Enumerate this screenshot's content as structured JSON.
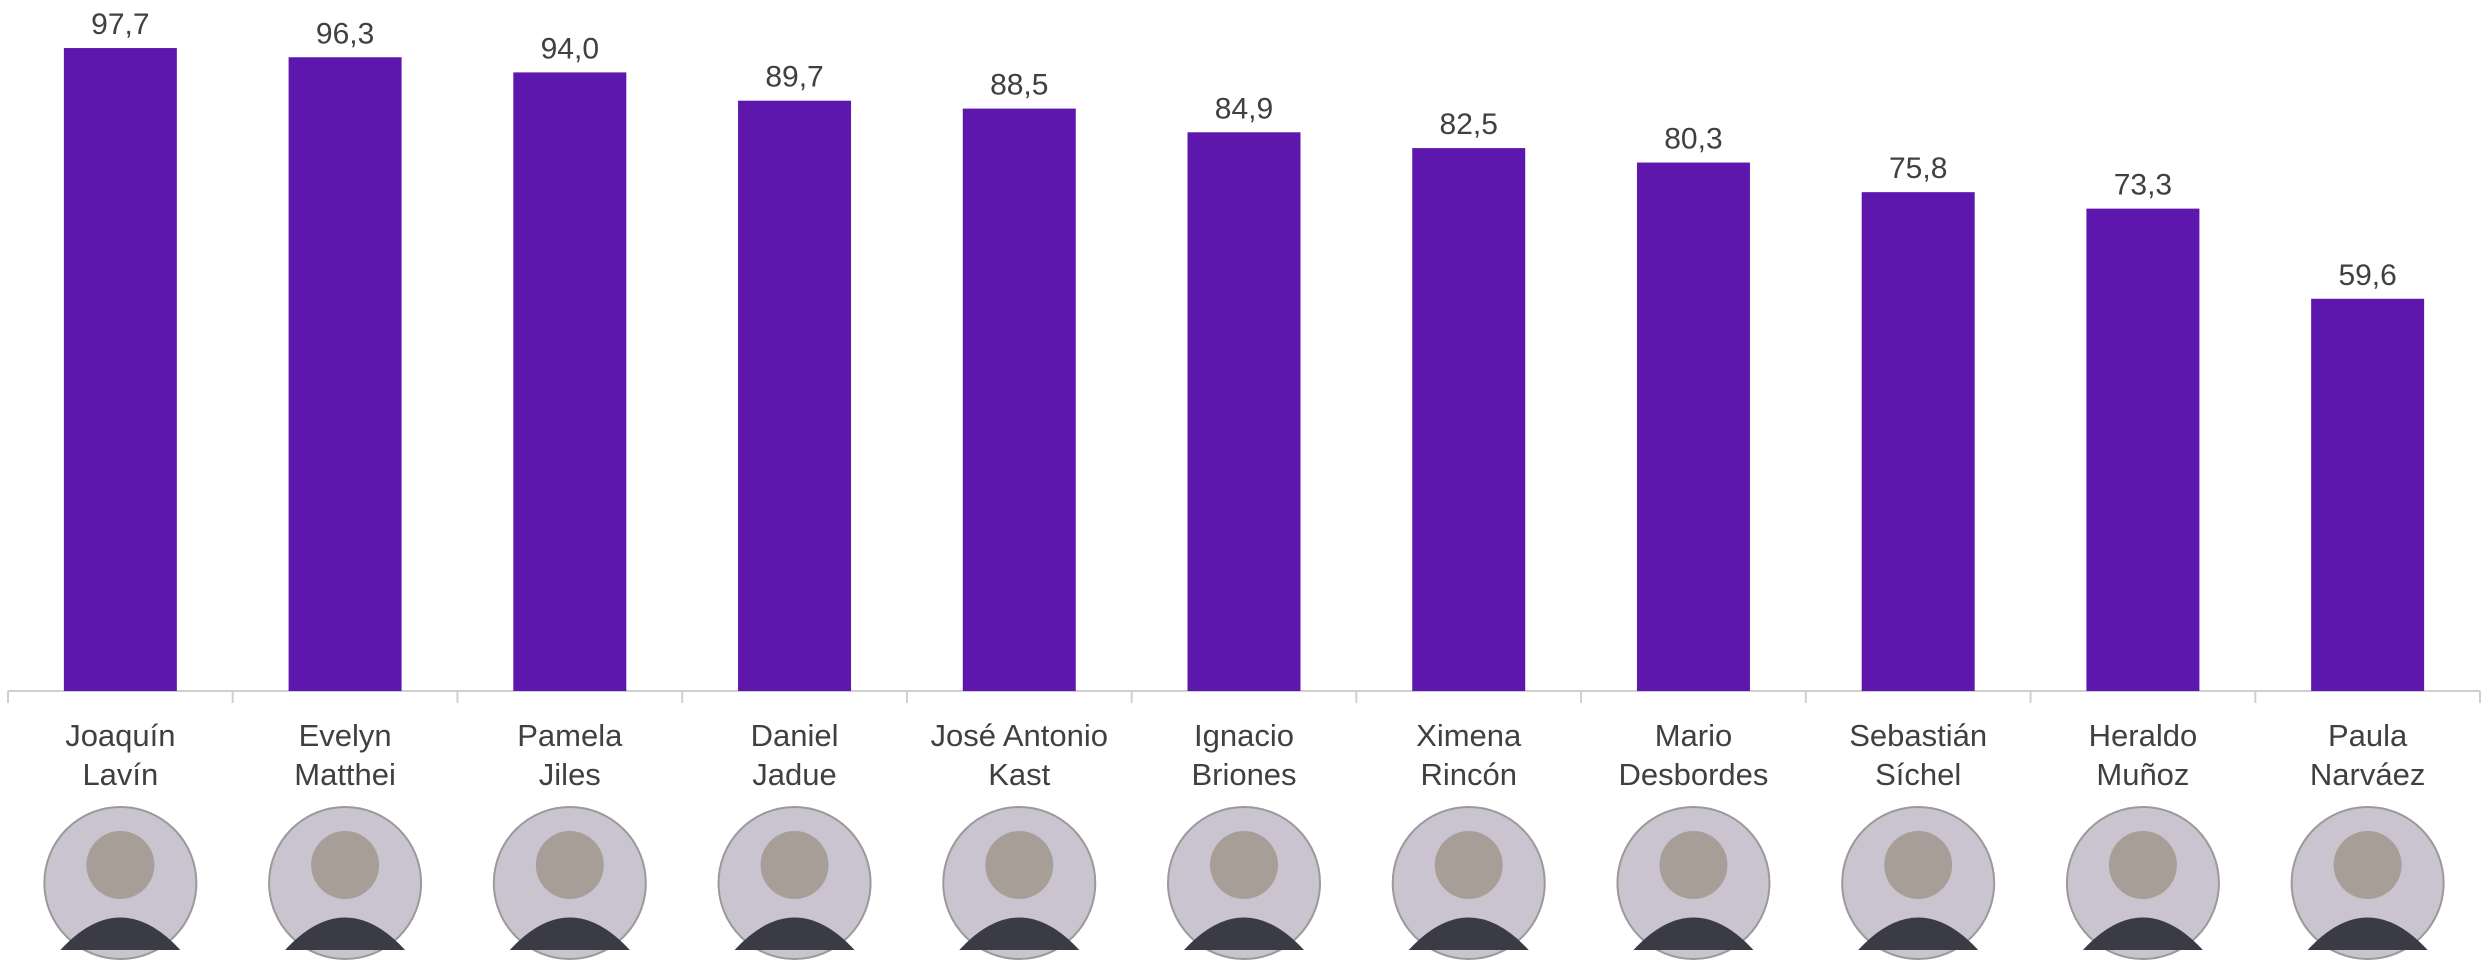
{
  "chart_data": {
    "type": "bar",
    "categories": [
      "Joaquín\nLavín",
      "Evelyn\nMatthei",
      "Pamela\nJiles",
      "Daniel\nJadue",
      "José Antonio\nKast",
      "Ignacio\nBriones",
      "Ximena\nRincón",
      "Mario\nDesbordes",
      "Sebastián\nSíchel",
      "Heraldo\nMuñoz",
      "Paula\nNarváez"
    ],
    "values": [
      97.7,
      96.3,
      94.0,
      89.7,
      88.5,
      84.9,
      82.5,
      80.3,
      75.8,
      73.3,
      59.6
    ],
    "value_labels": [
      "97,7",
      "96,3",
      "94,0",
      "89,7",
      "88,5",
      "84,9",
      "82,5",
      "80,3",
      "75,8",
      "73,3",
      "59,6"
    ],
    "color": "#5e17ad",
    "ylim": [
      0,
      105
    ]
  }
}
